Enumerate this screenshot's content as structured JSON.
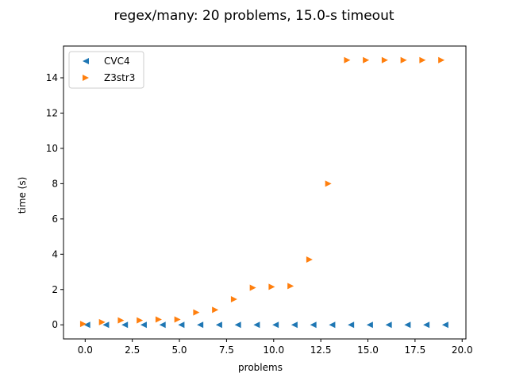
{
  "chart_data": {
    "type": "scatter",
    "title": "regex/many: 20 problems, 15.0-s timeout",
    "xlabel": "problems",
    "ylabel": "time (s)",
    "xlim": [
      -1.15,
      20.2
    ],
    "ylim": [
      -0.8,
      15.8
    ],
    "xticks": [
      0.0,
      2.5,
      5.0,
      7.5,
      10.0,
      12.5,
      15.0,
      17.5,
      20.0
    ],
    "xtick_labels": [
      "0.0",
      "2.5",
      "5.0",
      "7.5",
      "10.0",
      "12.5",
      "15.0",
      "17.5",
      "20.0"
    ],
    "yticks": [
      0,
      2,
      4,
      6,
      8,
      10,
      12,
      14
    ],
    "ytick_labels": [
      "0",
      "2",
      "4",
      "6",
      "8",
      "10",
      "12",
      "14"
    ],
    "grid": false,
    "legend_position": "top-left",
    "series": [
      {
        "name": "CVC4",
        "marker": "triangle-left",
        "color": "#1f77b4",
        "x": [
          0.1,
          1.1,
          2.1,
          3.1,
          4.1,
          5.1,
          6.1,
          7.1,
          8.1,
          9.1,
          10.1,
          11.1,
          12.1,
          13.1,
          14.1,
          15.1,
          16.1,
          17.1,
          18.1,
          19.1
        ],
        "y": [
          0,
          0,
          0,
          0,
          0,
          0,
          0,
          0,
          0,
          0,
          0,
          0,
          0,
          0,
          0,
          0,
          0,
          0,
          0,
          0
        ]
      },
      {
        "name": "Z3str3",
        "marker": "triangle-right",
        "color": "#ff7f0e",
        "x": [
          -0.1,
          0.9,
          1.9,
          2.9,
          3.9,
          4.9,
          5.9,
          6.9,
          7.9,
          8.9,
          9.9,
          10.9,
          11.9,
          12.9,
          13.9,
          14.9,
          15.9,
          16.9,
          17.9,
          18.9
        ],
        "y": [
          0.05,
          0.15,
          0.25,
          0.25,
          0.3,
          0.3,
          0.7,
          0.85,
          1.45,
          2.1,
          2.15,
          2.2,
          3.7,
          8.0,
          15.0,
          15.0,
          15.0,
          15.0,
          15.0,
          15.0
        ]
      }
    ]
  }
}
